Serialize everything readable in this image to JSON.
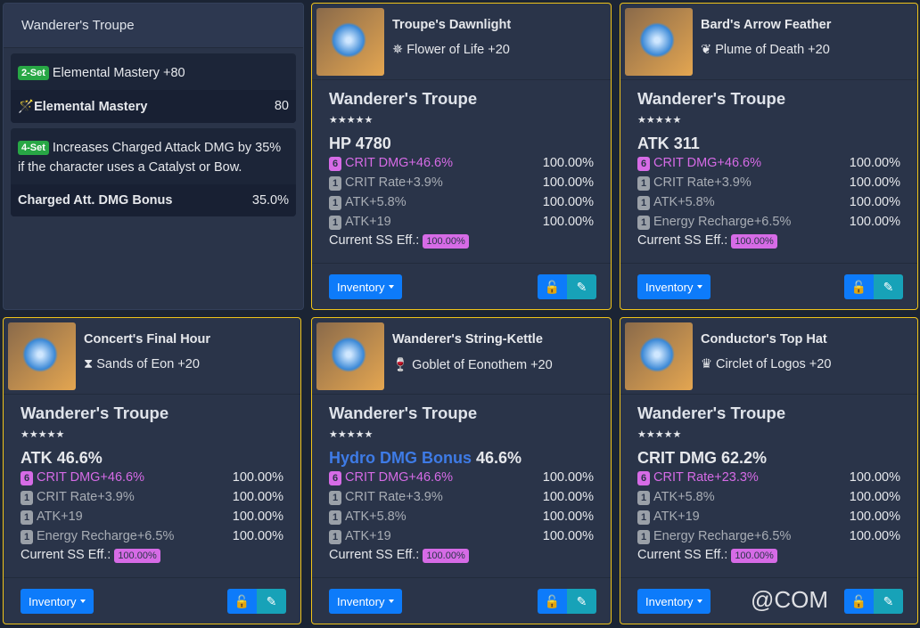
{
  "set": {
    "title": "Wanderer's Troupe",
    "bonuses": [
      {
        "badge": "2-Set",
        "desc": "Elemental Mastery +80",
        "stat": "Elemental Mastery",
        "value": "80",
        "icon": "magic-wand-icon"
      },
      {
        "badge": "4-Set",
        "desc": "Increases Charged Attack DMG by 35% if the character uses a Catalyst or Bow.",
        "stat": "Charged Att. DMG Bonus",
        "value": "35.0%"
      }
    ]
  },
  "eff_label": "Current SS Eff.:",
  "inventory_label": "Inventory",
  "stars": "★★★★★",
  "watermark": "@COM",
  "colors": {
    "highlight": "#d66be6",
    "border": "#f0c419",
    "primary": "#0d7bfa",
    "info": "#17a2b8",
    "hydro": "#3e7be6"
  },
  "artifacts": [
    {
      "name": "Troupe's Dawnlight",
      "slot": "Flower of Life +20",
      "slot_icon": "flower-icon",
      "glyph": "✵",
      "set": "Wanderer's Troupe",
      "main_label": "HP",
      "main_value": "4780",
      "eff": "100.00%",
      "subs": [
        {
          "rolls": "6",
          "text": "CRIT DMG+46.6%",
          "value": "100.00%",
          "hi": true
        },
        {
          "rolls": "1",
          "text": "CRIT Rate+3.9%",
          "value": "100.00%"
        },
        {
          "rolls": "1",
          "text": "ATK+5.8%",
          "value": "100.00%"
        },
        {
          "rolls": "1",
          "text": "ATK+19",
          "value": "100.00%"
        }
      ]
    },
    {
      "name": "Bard's Arrow Feather",
      "slot": "Plume of Death +20",
      "slot_icon": "feather-icon",
      "glyph": "❦",
      "set": "Wanderer's Troupe",
      "main_label": "ATK",
      "main_value": "311",
      "eff": "100.00%",
      "subs": [
        {
          "rolls": "6",
          "text": "CRIT DMG+46.6%",
          "value": "100.00%",
          "hi": true
        },
        {
          "rolls": "1",
          "text": "CRIT Rate+3.9%",
          "value": "100.00%"
        },
        {
          "rolls": "1",
          "text": "ATK+5.8%",
          "value": "100.00%"
        },
        {
          "rolls": "1",
          "text": "Energy Recharge+6.5%",
          "value": "100.00%"
        }
      ]
    },
    {
      "name": "Concert's Final Hour",
      "slot": "Sands of Eon +20",
      "slot_icon": "hourglass-icon",
      "glyph": "⧗",
      "set": "Wanderer's Troupe",
      "main_label": "ATK",
      "main_value": "46.6%",
      "eff": "100.00%",
      "subs": [
        {
          "rolls": "6",
          "text": "CRIT DMG+46.6%",
          "value": "100.00%",
          "hi": true
        },
        {
          "rolls": "1",
          "text": "CRIT Rate+3.9%",
          "value": "100.00%"
        },
        {
          "rolls": "1",
          "text": "ATK+19",
          "value": "100.00%"
        },
        {
          "rolls": "1",
          "text": "Energy Recharge+6.5%",
          "value": "100.00%"
        }
      ]
    },
    {
      "name": "Wanderer's String-Kettle",
      "slot": "Goblet of Eonothem +20",
      "slot_icon": "goblet-icon",
      "glyph": "🍷",
      "set": "Wanderer's Troupe",
      "main_label": "Hydro DMG Bonus",
      "main_hydro": true,
      "main_value": "46.6%",
      "eff": "100.00%",
      "subs": [
        {
          "rolls": "6",
          "text": "CRIT DMG+46.6%",
          "value": "100.00%",
          "hi": true
        },
        {
          "rolls": "1",
          "text": "CRIT Rate+3.9%",
          "value": "100.00%"
        },
        {
          "rolls": "1",
          "text": "ATK+5.8%",
          "value": "100.00%"
        },
        {
          "rolls": "1",
          "text": "ATK+19",
          "value": "100.00%"
        }
      ]
    },
    {
      "name": "Conductor's Top Hat",
      "slot": "Circlet of Logos +20",
      "slot_icon": "crown-icon",
      "glyph": "♛",
      "set": "Wanderer's Troupe",
      "main_label": "CRIT DMG",
      "main_value": "62.2%",
      "eff": "100.00%",
      "subs": [
        {
          "rolls": "6",
          "text": "CRIT Rate+23.3%",
          "value": "100.00%",
          "hi": true
        },
        {
          "rolls": "1",
          "text": "ATK+5.8%",
          "value": "100.00%"
        },
        {
          "rolls": "1",
          "text": "ATK+19",
          "value": "100.00%"
        },
        {
          "rolls": "1",
          "text": "Energy Recharge+6.5%",
          "value": "100.00%"
        }
      ]
    }
  ]
}
